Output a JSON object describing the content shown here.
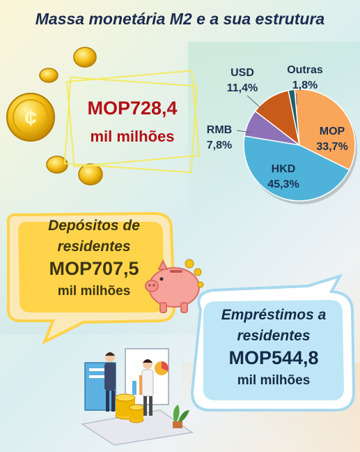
{
  "title": "Massa monetária M2 e a sua estrutura",
  "total": {
    "value": "MOP728,4",
    "unit": "mil milhões"
  },
  "deposits": {
    "label_line1": "Depósitos de",
    "label_line2": "residentes",
    "value": "MOP707,5",
    "unit": "mil milhões"
  },
  "loans": {
    "label_line1": "Empréstimos a",
    "label_line2": "residentes",
    "value": "MOP544,8",
    "unit": "mil milhões"
  },
  "chart_data": {
    "type": "pie",
    "slices": [
      {
        "name": "MOP",
        "value": 33.7,
        "label": "33,7%",
        "color": "#f9a65a"
      },
      {
        "name": "HKD",
        "value": 45.3,
        "label": "45,3%",
        "color": "#4fb3d9"
      },
      {
        "name": "RMB",
        "value": 7.8,
        "label": "7,8%",
        "color": "#8e72b8"
      },
      {
        "name": "USD",
        "value": 11.4,
        "label": "11,4%",
        "color": "#c85a1a"
      },
      {
        "name": "Outras",
        "value": 1.8,
        "label": "1,8%",
        "color": "#1f5f6e"
      }
    ]
  },
  "colors": {
    "title": "#1b2a4e",
    "total": "#b50e14",
    "deposit_bubble": "#ffd44a",
    "loan_bubble": "#bfe6f6"
  },
  "icons": [
    "coin-icon",
    "piggy-bank-icon",
    "business-people-icon"
  ]
}
